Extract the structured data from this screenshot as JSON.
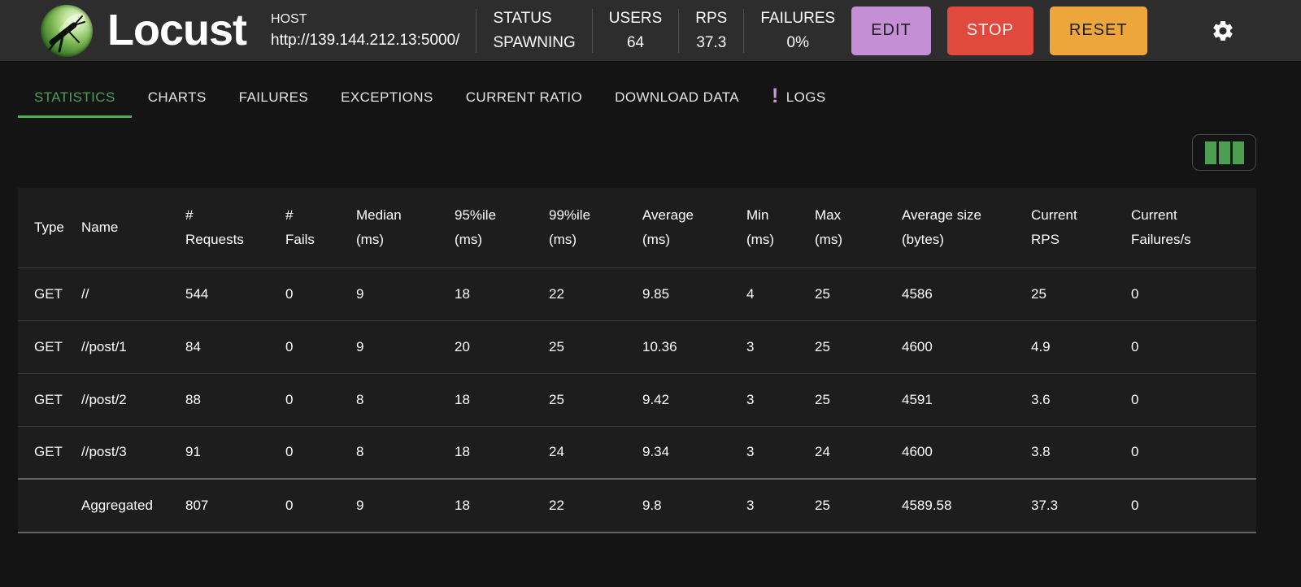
{
  "app": {
    "title": "Locust"
  },
  "header": {
    "host": {
      "label": "HOST",
      "url": "http://139.144.212.13:5000/"
    },
    "status": {
      "label": "STATUS",
      "value": "SPAWNING"
    },
    "users": {
      "label": "USERS",
      "value": "64"
    },
    "rps": {
      "label": "RPS",
      "value": "37.3"
    },
    "failures": {
      "label": "FAILURES",
      "value": "0%"
    },
    "edit_label": "EDIT",
    "stop_label": "STOP",
    "reset_label": "RESET"
  },
  "icons": {
    "logo": "locust-insect-orb",
    "settings": "gear",
    "logs_alert": "!",
    "column_selector": "column-bars"
  },
  "colors": {
    "topbar_bg": "#2d2d2d",
    "page_bg": "#141414",
    "table_bg": "#1d1d1d",
    "accent_green": "#4caf50",
    "active_tab_text": "#4e9e58",
    "edit_bg": "#c48fd4",
    "stop_bg": "#e2493d",
    "reset_bg": "#eda63c",
    "alert_purple": "#c39bd3"
  },
  "tabs": [
    {
      "label": "STATISTICS",
      "active": true,
      "alert": false
    },
    {
      "label": "CHARTS",
      "active": false,
      "alert": false
    },
    {
      "label": "FAILURES",
      "active": false,
      "alert": false
    },
    {
      "label": "EXCEPTIONS",
      "active": false,
      "alert": false
    },
    {
      "label": "CURRENT RATIO",
      "active": false,
      "alert": false
    },
    {
      "label": "DOWNLOAD DATA",
      "active": false,
      "alert": false
    },
    {
      "label": "LOGS",
      "active": false,
      "alert": true
    }
  ],
  "table": {
    "columns": [
      "Type",
      "Name",
      "#\nRequests",
      "#\nFails",
      "Median\n(ms)",
      "95%ile\n(ms)",
      "99%ile\n(ms)",
      "Average\n(ms)",
      "Min\n(ms)",
      "Max\n(ms)",
      "Average size\n(bytes)",
      "Current\nRPS",
      "Current\nFailures/s"
    ],
    "rows": [
      {
        "aggregated": false,
        "cells": [
          "GET",
          "//",
          "544",
          "0",
          "9",
          "18",
          "22",
          "9.85",
          "4",
          "25",
          "4586",
          "25",
          "0"
        ]
      },
      {
        "aggregated": false,
        "cells": [
          "GET",
          "//post/1",
          "84",
          "0",
          "9",
          "20",
          "25",
          "10.36",
          "3",
          "25",
          "4600",
          "4.9",
          "0"
        ]
      },
      {
        "aggregated": false,
        "cells": [
          "GET",
          "//post/2",
          "88",
          "0",
          "8",
          "18",
          "25",
          "9.42",
          "3",
          "25",
          "4591",
          "3.6",
          "0"
        ]
      },
      {
        "aggregated": false,
        "cells": [
          "GET",
          "//post/3",
          "91",
          "0",
          "8",
          "18",
          "24",
          "9.34",
          "3",
          "24",
          "4600",
          "3.8",
          "0"
        ]
      },
      {
        "aggregated": true,
        "cells": [
          "",
          "Aggregated",
          "807",
          "0",
          "9",
          "18",
          "22",
          "9.8",
          "3",
          "25",
          "4589.58",
          "37.3",
          "0"
        ]
      }
    ]
  }
}
